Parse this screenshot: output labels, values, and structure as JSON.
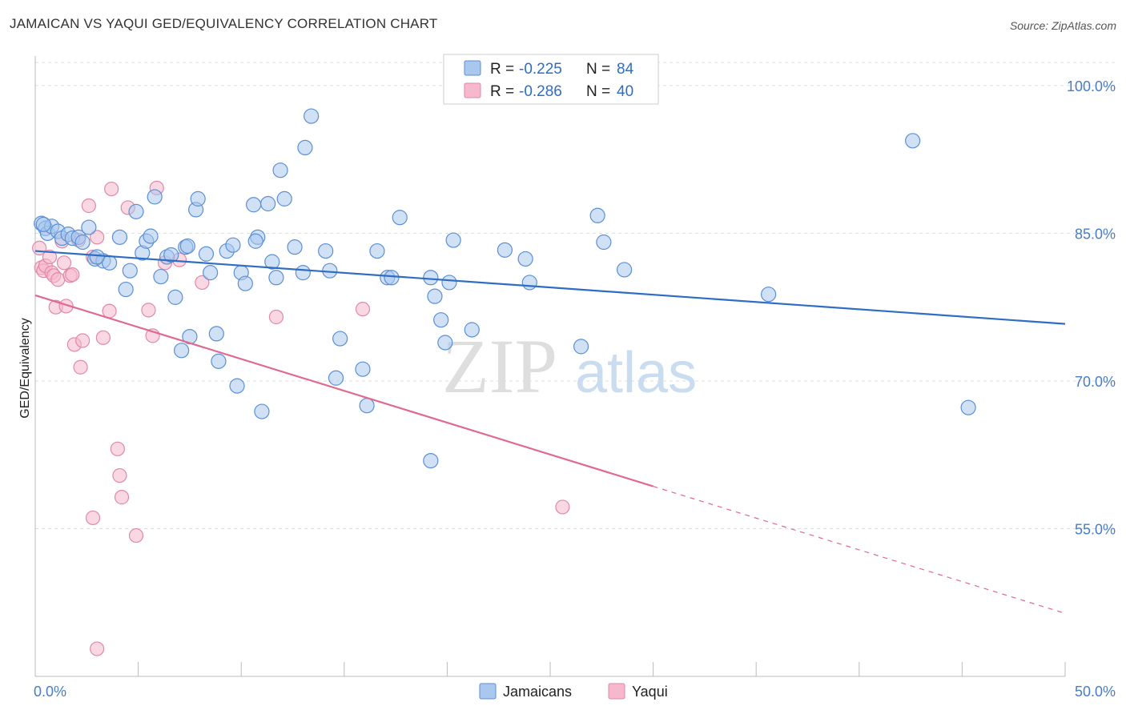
{
  "title": "JAMAICAN VS YAQUI GED/EQUIVALENCY CORRELATION CHART",
  "source": "Source: ZipAtlas.com",
  "watermark": {
    "zip": "ZIP",
    "atlas": "atlas"
  },
  "colors": {
    "jamaicans_fill": "#aac8ee",
    "jamaicans_stroke": "#5b8fd4",
    "jamaicans_line": "#2f6dc4",
    "yaqui_fill": "#f5b8cc",
    "yaqui_stroke": "#e089a8",
    "yaqui_line": "#e0698f",
    "grid": "#dddddd",
    "tick_label": "#4a7cc4"
  },
  "legend": {
    "r_label": "R =",
    "n_label": "N =",
    "rows": [
      {
        "series": "Jamaicans",
        "r": "-0.225",
        "n": "84"
      },
      {
        "series": "Yaqui",
        "r": "-0.286",
        "n": "40"
      }
    ]
  },
  "chart_data": {
    "type": "scatter",
    "title": "JAMAICAN VS YAQUI GED/EQUIVALENCY CORRELATION CHART",
    "xlabel": "",
    "ylabel": "GED/Equivalency",
    "xlim": [
      0,
      50
    ],
    "ylim": [
      40,
      103
    ],
    "x_tick_labels": [
      "0.0%",
      "50.0%"
    ],
    "y_ticks": [
      55,
      70,
      85,
      100
    ],
    "y_tick_labels": [
      "55.0%",
      "70.0%",
      "85.0%",
      "100.0%"
    ],
    "grid": true,
    "legend_position": "top-center",
    "series": [
      {
        "name": "Jamaicans",
        "r": -0.225,
        "n": 84,
        "trend": {
          "x0": 0,
          "y0": 83.2,
          "x1": 50,
          "y1": 75.8
        },
        "points": [
          [
            0.3,
            86.0
          ],
          [
            0.5,
            85.5
          ],
          [
            0.6,
            85.0
          ],
          [
            0.8,
            85.7
          ],
          [
            1.1,
            85.2
          ],
          [
            1.3,
            84.5
          ],
          [
            1.6,
            84.9
          ],
          [
            1.8,
            84.5
          ],
          [
            2.1,
            84.6
          ],
          [
            2.3,
            84.1
          ],
          [
            2.6,
            85.6
          ],
          [
            2.9,
            82.4
          ],
          [
            3.3,
            82.2
          ],
          [
            3.6,
            82.0
          ],
          [
            4.1,
            84.6
          ],
          [
            4.4,
            79.3
          ],
          [
            4.6,
            81.2
          ],
          [
            4.9,
            87.2
          ],
          [
            5.2,
            83.0
          ],
          [
            5.4,
            84.2
          ],
          [
            5.6,
            84.7
          ],
          [
            5.8,
            88.7
          ],
          [
            6.1,
            80.6
          ],
          [
            6.4,
            82.6
          ],
          [
            6.6,
            82.8
          ],
          [
            6.8,
            78.5
          ],
          [
            7.1,
            73.1
          ],
          [
            7.3,
            83.6
          ],
          [
            7.5,
            74.5
          ],
          [
            7.8,
            87.4
          ],
          [
            7.9,
            88.5
          ],
          [
            8.3,
            82.9
          ],
          [
            8.5,
            81.0
          ],
          [
            8.8,
            74.8
          ],
          [
            8.9,
            72.0
          ],
          [
            9.3,
            83.2
          ],
          [
            9.6,
            83.8
          ],
          [
            9.8,
            69.5
          ],
          [
            10.0,
            81.0
          ],
          [
            10.2,
            79.9
          ],
          [
            10.6,
            87.9
          ],
          [
            10.8,
            84.6
          ],
          [
            10.7,
            84.2
          ],
          [
            11.0,
            66.9
          ],
          [
            11.3,
            88.0
          ],
          [
            11.5,
            82.1
          ],
          [
            11.7,
            80.5
          ],
          [
            11.9,
            91.4
          ],
          [
            12.1,
            88.5
          ],
          [
            12.6,
            83.6
          ],
          [
            13.0,
            81.0
          ],
          [
            13.1,
            93.7
          ],
          [
            13.4,
            96.9
          ],
          [
            14.1,
            83.2
          ],
          [
            14.3,
            81.2
          ],
          [
            14.6,
            70.3
          ],
          [
            14.8,
            74.3
          ],
          [
            15.9,
            71.2
          ],
          [
            16.1,
            67.5
          ],
          [
            16.6,
            83.2
          ],
          [
            17.1,
            80.5
          ],
          [
            17.3,
            80.5
          ],
          [
            17.7,
            86.6
          ],
          [
            19.2,
            61.9
          ],
          [
            19.2,
            80.5
          ],
          [
            19.4,
            78.6
          ],
          [
            19.7,
            76.2
          ],
          [
            19.9,
            73.9
          ],
          [
            20.1,
            80.0
          ],
          [
            20.3,
            84.3
          ],
          [
            21.2,
            75.2
          ],
          [
            22.8,
            83.3
          ],
          [
            23.8,
            82.4
          ],
          [
            24.0,
            80.0
          ],
          [
            26.5,
            73.5
          ],
          [
            27.3,
            86.8
          ],
          [
            27.6,
            84.1
          ],
          [
            28.6,
            81.3
          ],
          [
            35.6,
            78.8
          ],
          [
            42.6,
            94.4
          ],
          [
            45.3,
            67.3
          ],
          [
            0.4,
            85.9
          ],
          [
            3.0,
            82.6
          ],
          [
            7.4,
            83.7
          ]
        ]
      },
      {
        "name": "Yaqui",
        "r": -0.286,
        "n": 40,
        "trend": {
          "x0": 0,
          "y0": 78.7,
          "x1": 30,
          "y1": 59.3,
          "dash_x1": 50,
          "dash_y1": 46.4
        },
        "points": [
          [
            0.2,
            83.5
          ],
          [
            0.3,
            81.5
          ],
          [
            0.4,
            81.2
          ],
          [
            0.5,
            81.7
          ],
          [
            0.7,
            82.6
          ],
          [
            0.8,
            81.0
          ],
          [
            0.9,
            80.7
          ],
          [
            1.0,
            77.5
          ],
          [
            1.1,
            80.3
          ],
          [
            1.3,
            84.2
          ],
          [
            1.4,
            82.0
          ],
          [
            1.5,
            77.6
          ],
          [
            1.7,
            80.7
          ],
          [
            1.8,
            80.8
          ],
          [
            1.9,
            73.7
          ],
          [
            2.1,
            84.3
          ],
          [
            2.2,
            71.4
          ],
          [
            2.3,
            74.1
          ],
          [
            2.6,
            87.8
          ],
          [
            2.8,
            82.6
          ],
          [
            3.0,
            84.6
          ],
          [
            3.0,
            42.8
          ],
          [
            3.3,
            74.4
          ],
          [
            3.6,
            77.1
          ],
          [
            3.7,
            89.5
          ],
          [
            4.0,
            63.1
          ],
          [
            4.1,
            60.4
          ],
          [
            4.2,
            58.2
          ],
          [
            4.5,
            87.6
          ],
          [
            4.9,
            54.3
          ],
          [
            5.5,
            77.2
          ],
          [
            5.7,
            74.6
          ],
          [
            5.9,
            89.6
          ],
          [
            7.0,
            82.3
          ],
          [
            8.1,
            80.0
          ],
          [
            11.7,
            76.5
          ],
          [
            15.9,
            77.3
          ],
          [
            25.6,
            57.2
          ],
          [
            2.8,
            56.1
          ],
          [
            6.3,
            82.0
          ]
        ]
      }
    ]
  },
  "bottom_legend": [
    {
      "label": "Jamaicans"
    },
    {
      "label": "Yaqui"
    }
  ]
}
